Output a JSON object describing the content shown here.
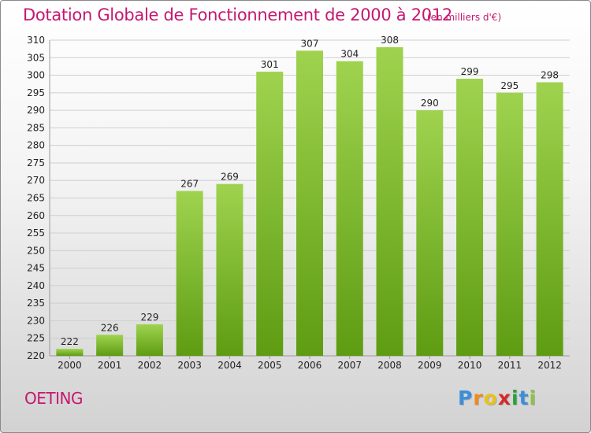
{
  "title": "Dotation Globale de Fonctionnement de 2000 à 2012",
  "subtitle": "(en milliers d'€)",
  "commune": "OETING",
  "logo": {
    "letters": [
      "P",
      "r",
      "o",
      "x",
      "i",
      "t",
      "i"
    ],
    "colors": [
      "#3b8fd8",
      "#f08a1c",
      "#e8c21a",
      "#d42a2a",
      "#2aa03c",
      "#3b8fd8",
      "#8bc34a"
    ]
  },
  "colors": {
    "title": "#c5186f",
    "bar_light": "#9fd34f",
    "bar_dark": "#5e9c12",
    "grid": "#cfcfcf",
    "axis_text": "#222222"
  },
  "chart_data": {
    "type": "bar",
    "categories": [
      "2000",
      "2001",
      "2002",
      "2003",
      "2004",
      "2005",
      "2006",
      "2007",
      "2008",
      "2009",
      "2010",
      "2011",
      "2012"
    ],
    "values": [
      222,
      226,
      229,
      267,
      269,
      301,
      307,
      304,
      308,
      290,
      299,
      295,
      298
    ],
    "ylim": [
      220,
      310
    ],
    "ytick_step": 5,
    "grid": true,
    "xlabel": "",
    "ylabel": ""
  }
}
